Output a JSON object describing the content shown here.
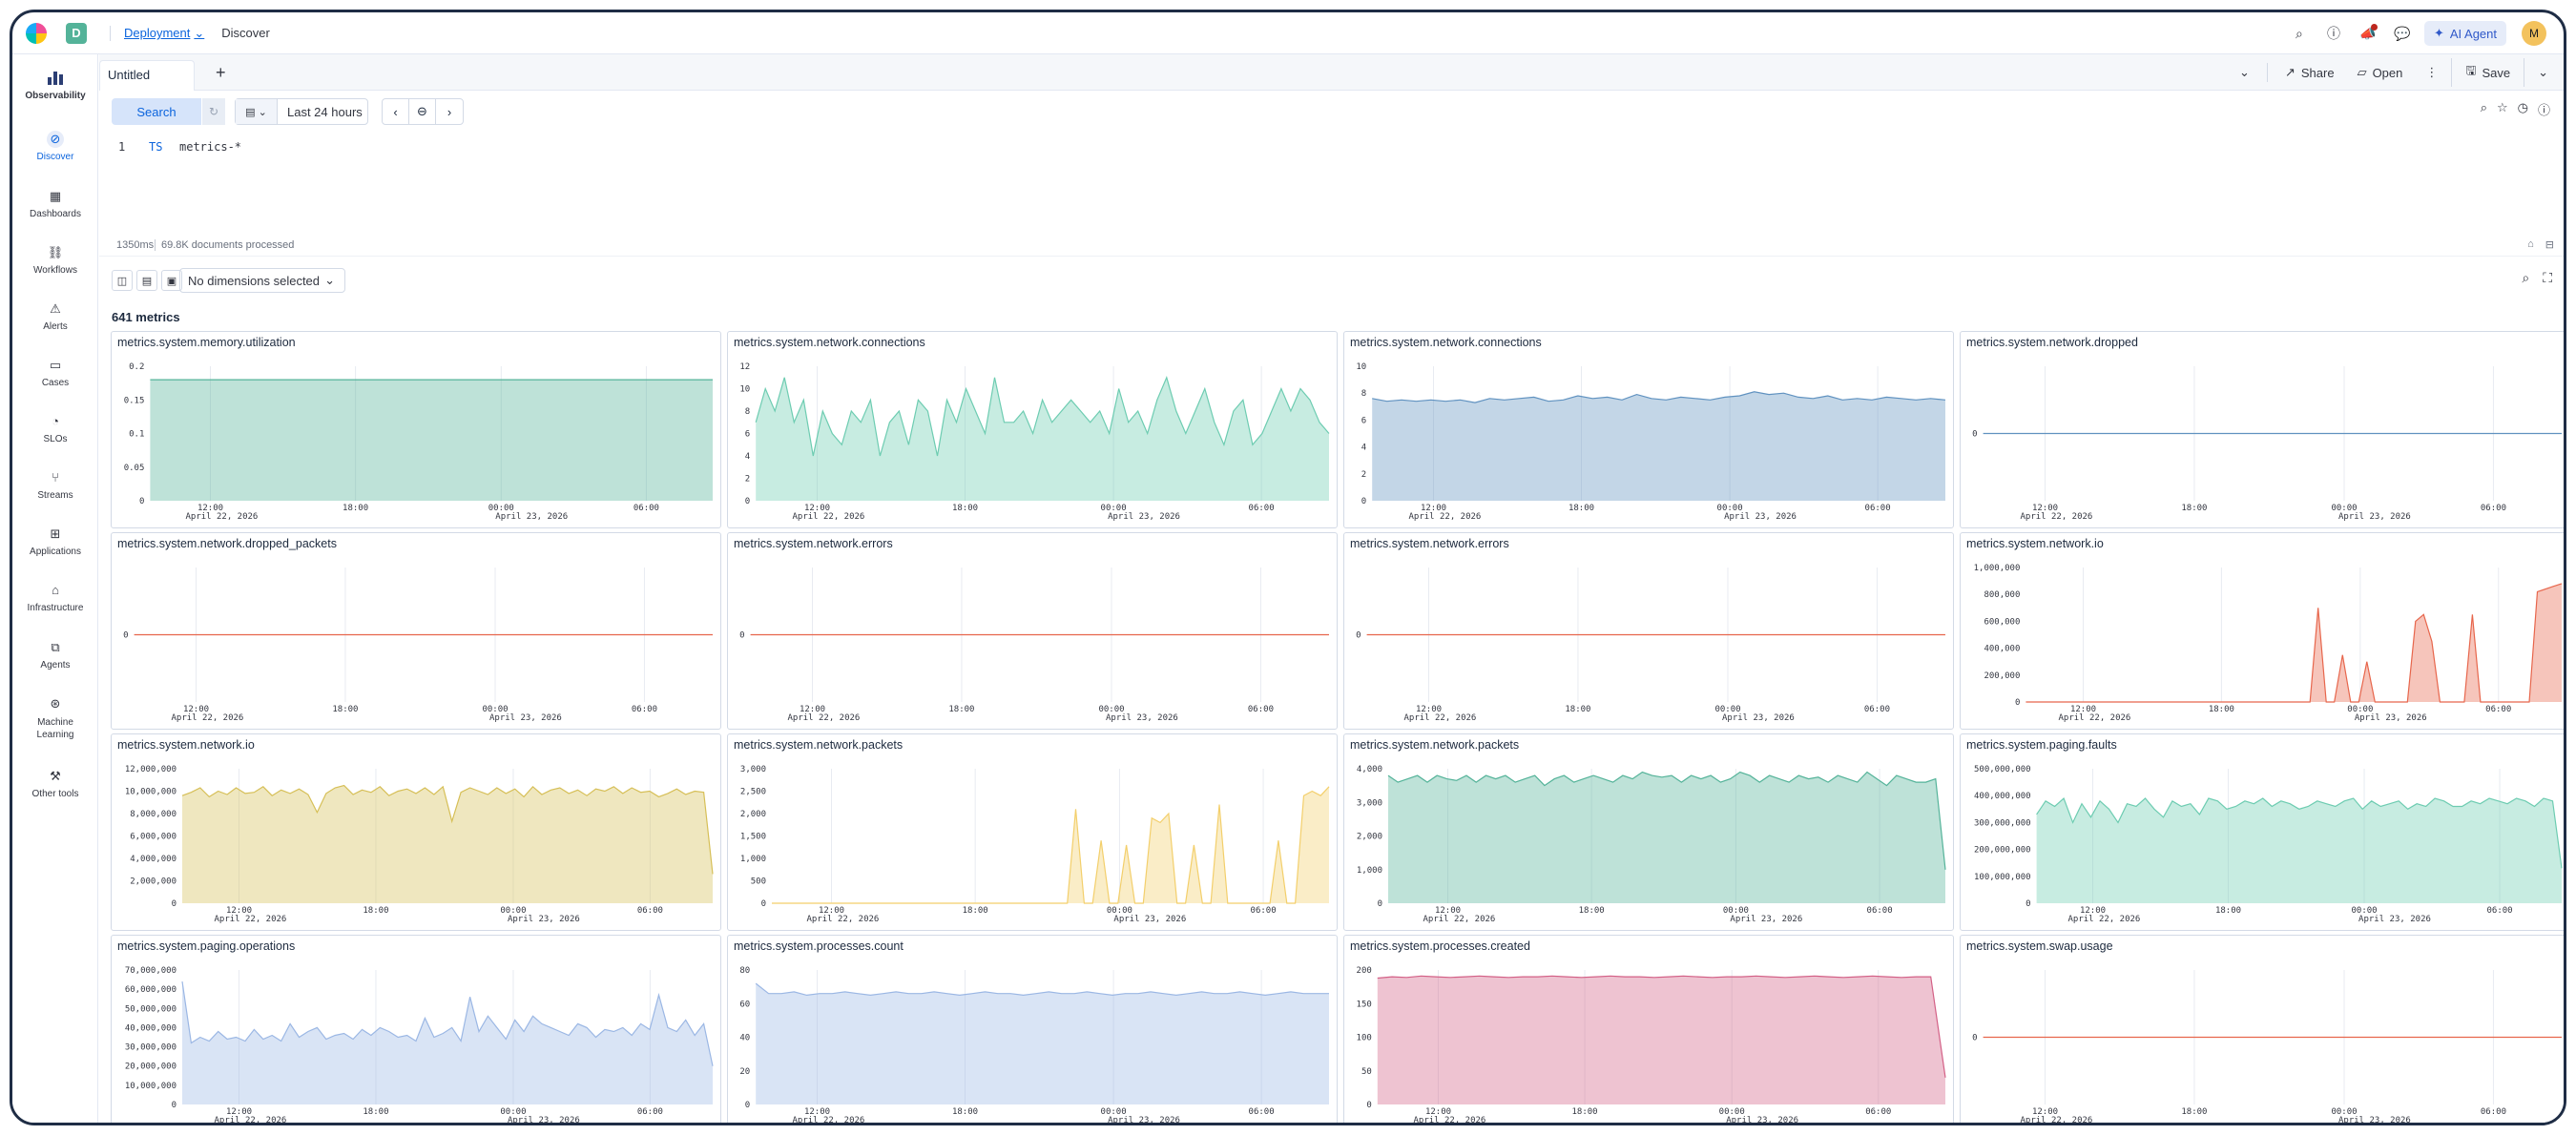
{
  "topbar": {
    "space_letter": "D",
    "breadcrumb_deployment": "Deployment",
    "breadcrumb_discover": "Discover",
    "ai_agent_label": "AI Agent",
    "avatar_initial": "M"
  },
  "sidebar": {
    "items": [
      {
        "label": "Observability"
      },
      {
        "label": "Discover"
      },
      {
        "label": "Dashboards"
      },
      {
        "label": "Workflows"
      },
      {
        "label": "Alerts"
      },
      {
        "label": "Cases"
      },
      {
        "label": "SLOs"
      },
      {
        "label": "Streams"
      },
      {
        "label": "Applications"
      },
      {
        "label": "Infrastructure"
      },
      {
        "label": "Agents"
      },
      {
        "label": "Machine Learning"
      },
      {
        "label": "Other tools"
      }
    ]
  },
  "tabs": {
    "active_tab": "Untitled",
    "share_label": "Share",
    "open_label": "Open",
    "save_label": "Save"
  },
  "query": {
    "search_label": "Search",
    "time_range": "Last 24 hours",
    "line_number": "1",
    "keyword": "TS",
    "source": "metrics-*"
  },
  "status": {
    "duration": "1350ms",
    "documents": "69.8K documents processed"
  },
  "toolbar": {
    "dimensions_label": "No dimensions selected"
  },
  "metrics_count": "641 metrics",
  "colors": {
    "teal": "#54b399",
    "lightteal": "#6dccb1",
    "blue": "#6092c0",
    "red": "#e7664c",
    "salmon": "#e7664c",
    "gold": "#d6bf57",
    "lightgold": "#f3cf6b",
    "lightblue": "#9bb7e4",
    "pink": "#d36086",
    "line_blue": "#6092c0"
  },
  "panels": [
    {
      "title": "metrics.system.memory.utilization",
      "chart_data": {
        "type": "area",
        "color": "teal",
        "yticks": [
          "0.2",
          "0.15",
          "0.1",
          "0.05",
          "0"
        ],
        "ylim": [
          0,
          0.2
        ],
        "xticks": [
          "12:00",
          "18:00",
          "00:00",
          "06:00"
        ],
        "xdates": [
          "April 22, 2026",
          "April 23, 2026"
        ],
        "values": [
          0.18,
          0.18,
          0.18,
          0.18,
          0.18,
          0.18,
          0.18,
          0.18,
          0.18,
          0.18,
          0.18,
          0.18
        ]
      }
    },
    {
      "title": "metrics.system.network.connections",
      "chart_data": {
        "type": "area",
        "color": "lightteal",
        "yticks": [
          "12",
          "10",
          "8",
          "6",
          "4",
          "2",
          "0"
        ],
        "ylim": [
          0,
          12
        ],
        "xticks": [
          "12:00",
          "18:00",
          "00:00",
          "06:00"
        ],
        "xdates": [
          "April 22, 2026",
          "April 23, 2026"
        ],
        "values": [
          7,
          10,
          8,
          11,
          7,
          9,
          4,
          8,
          6,
          5,
          8,
          7,
          9,
          4,
          7,
          8,
          5,
          9,
          8,
          4,
          9,
          7,
          10,
          8,
          6,
          11,
          7,
          7,
          8,
          6,
          9,
          7,
          8,
          9,
          8,
          7,
          8,
          6,
          10,
          7,
          8,
          6,
          9,
          11,
          8,
          6,
          8,
          10,
          7,
          5,
          8,
          9,
          5,
          6,
          8,
          10,
          8,
          10,
          9,
          7,
          6
        ]
      }
    },
    {
      "title": "metrics.system.network.connections",
      "chart_data": {
        "type": "area",
        "color": "blue",
        "yticks": [
          "10",
          "8",
          "6",
          "4",
          "2",
          "0"
        ],
        "ylim": [
          0,
          10
        ],
        "xticks": [
          "12:00",
          "18:00",
          "00:00",
          "06:00"
        ],
        "xdates": [
          "April 22, 2026",
          "April 23, 2026"
        ],
        "values": [
          7.6,
          7.4,
          7.5,
          7.4,
          7.5,
          7.4,
          7.5,
          7.3,
          7.6,
          7.5,
          7.6,
          7.7,
          7.4,
          7.5,
          7.8,
          7.6,
          7.7,
          7.5,
          7.9,
          7.6,
          7.5,
          7.7,
          7.6,
          7.5,
          7.7,
          7.8,
          8.1,
          7.9,
          8.0,
          7.7,
          7.6,
          7.8,
          7.5,
          7.6,
          7.5,
          7.7,
          7.6,
          7.5,
          7.6,
          7.5
        ]
      }
    },
    {
      "title": "metrics.system.network.dropped",
      "chart_data": {
        "type": "line",
        "color": "line_blue",
        "yticks": [
          "0"
        ],
        "ylim": [
          -1,
          1
        ],
        "xticks": [
          "12:00",
          "18:00",
          "00:00",
          "06:00"
        ],
        "xdates": [
          "April 22, 2026",
          "April 23, 2026"
        ],
        "values": [
          0,
          0
        ]
      }
    },
    {
      "title": "metrics.system.network.dropped_packets",
      "chart_data": {
        "type": "line",
        "color": "red",
        "yticks": [
          "0"
        ],
        "ylim": [
          -1,
          1
        ],
        "xticks": [
          "12:00",
          "18:00",
          "00:00",
          "06:00"
        ],
        "xdates": [
          "April 22, 2026",
          "April 23, 2026"
        ],
        "values": [
          0,
          0
        ]
      }
    },
    {
      "title": "metrics.system.network.errors",
      "chart_data": {
        "type": "line",
        "color": "salmon",
        "yticks": [
          "0"
        ],
        "ylim": [
          -1,
          1
        ],
        "xticks": [
          "12:00",
          "18:00",
          "00:00",
          "06:00"
        ],
        "xdates": [
          "April 22, 2026",
          "April 23, 2026"
        ],
        "values": [
          0,
          0
        ]
      }
    },
    {
      "title": "metrics.system.network.errors",
      "chart_data": {
        "type": "line",
        "color": "red",
        "yticks": [
          "0"
        ],
        "ylim": [
          -1,
          1
        ],
        "xticks": [
          "12:00",
          "18:00",
          "00:00",
          "06:00"
        ],
        "xdates": [
          "April 22, 2026",
          "April 23, 2026"
        ],
        "values": [
          0,
          0
        ]
      }
    },
    {
      "title": "metrics.system.network.io",
      "chart_data": {
        "type": "area",
        "color": "salmon",
        "yticks": [
          "1,000,000",
          "800,000",
          "600,000",
          "400,000",
          "200,000",
          "0"
        ],
        "ylim": [
          0,
          1000000
        ],
        "xticks": [
          "12:00",
          "18:00",
          "00:00",
          "06:00"
        ],
        "xdates": [
          "April 22, 2026",
          "April 23, 2026"
        ],
        "values": [
          0,
          0,
          0,
          0,
          0,
          0,
          0,
          0,
          0,
          0,
          0,
          0,
          0,
          0,
          0,
          0,
          0,
          0,
          0,
          0,
          0,
          0,
          0,
          0,
          0,
          0,
          0,
          0,
          0,
          0,
          0,
          0,
          0,
          0,
          0,
          0,
          700000,
          0,
          0,
          350000,
          0,
          0,
          300000,
          0,
          0,
          0,
          0,
          0,
          600000,
          650000,
          450000,
          0,
          0,
          0,
          0,
          650000,
          0,
          0,
          0,
          0,
          0,
          0,
          0,
          820000,
          840000,
          860000,
          880000
        ]
      }
    },
    {
      "title": "metrics.system.network.io",
      "chart_data": {
        "type": "area",
        "color": "gold",
        "yticks": [
          "12,000,000",
          "10,000,000",
          "8,000,000",
          "6,000,000",
          "4,000,000",
          "2,000,000",
          "0"
        ],
        "ylim": [
          0,
          12000000
        ],
        "xticks": [
          "12:00",
          "18:00",
          "00:00",
          "06:00"
        ],
        "xdates": [
          "April 22, 2026",
          "April 23, 2026"
        ],
        "values": [
          9600000,
          9900000,
          10300000,
          9500000,
          10000000,
          9700000,
          10300000,
          9800000,
          9900000,
          10400000,
          9600000,
          10100000,
          9800000,
          10200000,
          9700000,
          8100000,
          9800000,
          10300000,
          10500000,
          9700000,
          10100000,
          9900000,
          10400000,
          9600000,
          10000000,
          10200000,
          9800000,
          10300000,
          9700000,
          10400000,
          7300000,
          9900000,
          10300000,
          10000000,
          9700000,
          10300000,
          9800000,
          10200000,
          9500000,
          10400000,
          9700000,
          10100000,
          10300000,
          9800000,
          10100000,
          9600000,
          10200000,
          10000000,
          10400000,
          9800000,
          10300000,
          9900000,
          10000000,
          9500000,
          9800000,
          10200000,
          9700000,
          10000000,
          9900000,
          2600000
        ]
      }
    },
    {
      "title": "metrics.system.network.packets",
      "chart_data": {
        "type": "area",
        "color": "lightgold",
        "yticks": [
          "3,000",
          "2,500",
          "2,000",
          "1,500",
          "1,000",
          "500",
          "0"
        ],
        "ylim": [
          0,
          3000
        ],
        "xticks": [
          "12:00",
          "18:00",
          "00:00",
          "06:00"
        ],
        "xdates": [
          "April 22, 2026",
          "April 23, 2026"
        ],
        "values": [
          0,
          0,
          0,
          0,
          0,
          0,
          0,
          0,
          0,
          0,
          0,
          0,
          0,
          0,
          0,
          0,
          0,
          0,
          0,
          0,
          0,
          0,
          0,
          0,
          0,
          0,
          0,
          0,
          0,
          0,
          0,
          0,
          0,
          0,
          0,
          0,
          2100,
          0,
          0,
          1400,
          0,
          0,
          1300,
          0,
          0,
          1900,
          1800,
          2000,
          0,
          0,
          1300,
          0,
          0,
          2200,
          0,
          0,
          0,
          0,
          0,
          0,
          1400,
          0,
          0,
          2400,
          2500,
          2400,
          2600
        ]
      }
    },
    {
      "title": "metrics.system.network.packets",
      "chart_data": {
        "type": "area",
        "color": "teal",
        "yticks": [
          "4,000",
          "3,000",
          "2,000",
          "1,000",
          "0"
        ],
        "ylim": [
          0,
          4000
        ],
        "xticks": [
          "12:00",
          "18:00",
          "00:00",
          "06:00"
        ],
        "xdates": [
          "April 22, 2026",
          "April 23, 2026"
        ],
        "values": [
          3800,
          3600,
          3700,
          3800,
          3600,
          3800,
          3700,
          3650,
          3800,
          3600,
          3800,
          3700,
          3800,
          3600,
          3700,
          3800,
          3500,
          3700,
          3800,
          3600,
          3700,
          3800,
          3700,
          3600,
          3800,
          3700,
          3900,
          3800,
          3750,
          3800,
          3600,
          3800,
          3700,
          3800,
          3600,
          3700,
          3900,
          3800,
          3600,
          3800,
          3700,
          3600,
          3800,
          3700,
          3750,
          3600,
          3800,
          3700,
          3600,
          3900,
          3700,
          3500,
          3800,
          3700,
          3600,
          3600,
          3700,
          1000
        ]
      }
    },
    {
      "title": "metrics.system.paging.faults",
      "chart_data": {
        "type": "area",
        "color": "lightteal",
        "yticks": [
          "500,000,000",
          "400,000,000",
          "300,000,000",
          "200,000,000",
          "100,000,000",
          "0"
        ],
        "ylim": [
          0,
          500000000
        ],
        "xticks": [
          "12:00",
          "18:00",
          "00:00",
          "06:00"
        ],
        "xdates": [
          "April 22, 2026",
          "April 23, 2026"
        ],
        "values": [
          330000000,
          380000000,
          360000000,
          390000000,
          300000000,
          370000000,
          320000000,
          380000000,
          350000000,
          300000000,
          370000000,
          360000000,
          390000000,
          350000000,
          320000000,
          380000000,
          360000000,
          370000000,
          330000000,
          390000000,
          380000000,
          350000000,
          360000000,
          380000000,
          370000000,
          390000000,
          360000000,
          380000000,
          370000000,
          350000000,
          360000000,
          380000000,
          370000000,
          360000000,
          380000000,
          390000000,
          350000000,
          380000000,
          360000000,
          370000000,
          380000000,
          350000000,
          370000000,
          360000000,
          390000000,
          380000000,
          360000000,
          360000000,
          380000000,
          370000000,
          390000000,
          380000000,
          370000000,
          390000000,
          380000000,
          360000000,
          390000000,
          380000000,
          130000000
        ]
      }
    },
    {
      "title": "metrics.system.paging.operations",
      "chart_data": {
        "type": "area",
        "color": "lightblue",
        "yticks": [
          "70,000,000",
          "60,000,000",
          "50,000,000",
          "40,000,000",
          "30,000,000",
          "20,000,000",
          "10,000,000",
          "0"
        ],
        "ylim": [
          0,
          70000000
        ],
        "xticks": [
          "12:00",
          "18:00",
          "00:00",
          "06:00"
        ],
        "xdates": [
          "April 22, 2026",
          "April 23, 2026"
        ],
        "values": [
          64000000,
          32000000,
          35000000,
          33000000,
          38000000,
          34000000,
          35000000,
          33000000,
          39000000,
          34000000,
          36000000,
          33000000,
          42000000,
          35000000,
          38000000,
          40000000,
          34000000,
          36000000,
          37000000,
          34000000,
          39000000,
          36000000,
          40000000,
          38000000,
          35000000,
          36000000,
          33000000,
          45000000,
          35000000,
          37000000,
          40000000,
          33000000,
          56000000,
          38000000,
          46000000,
          40000000,
          34000000,
          44000000,
          38000000,
          46000000,
          42000000,
          40000000,
          38000000,
          36000000,
          42000000,
          40000000,
          35000000,
          39000000,
          38000000,
          40000000,
          36000000,
          42000000,
          39000000,
          57000000,
          40000000,
          38000000,
          44000000,
          36000000,
          42000000,
          20000000
        ]
      }
    },
    {
      "title": "metrics.system.processes.count",
      "chart_data": {
        "type": "area",
        "color": "lightblue",
        "yticks": [
          "80",
          "60",
          "40",
          "20",
          "0"
        ],
        "ylim": [
          0,
          80
        ],
        "xticks": [
          "12:00",
          "18:00",
          "00:00",
          "06:00"
        ],
        "xdates": [
          "April 22, 2026",
          "April 23, 2026"
        ],
        "values": [
          72,
          66,
          66,
          67,
          65,
          66,
          66,
          67,
          66,
          65,
          66,
          67,
          66,
          66,
          67,
          66,
          65,
          66,
          67,
          66,
          66,
          65,
          66,
          67,
          66,
          66,
          67,
          66,
          65,
          66,
          66,
          67,
          66,
          65,
          66,
          67,
          66,
          66,
          67,
          66,
          65,
          66,
          67,
          66,
          66,
          66
        ]
      }
    },
    {
      "title": "metrics.system.processes.created",
      "chart_data": {
        "type": "area",
        "color": "pink",
        "yticks": [
          "200",
          "150",
          "100",
          "50",
          "0"
        ],
        "ylim": [
          0,
          200
        ],
        "xticks": [
          "12:00",
          "18:00",
          "00:00",
          "06:00"
        ],
        "xdates": [
          "April 22, 2026",
          "April 23, 2026"
        ],
        "values": [
          188,
          190,
          189,
          191,
          190,
          189,
          190,
          191,
          190,
          189,
          190,
          190,
          191,
          190,
          189,
          190,
          191,
          190,
          190,
          189,
          190,
          191,
          190,
          189,
          190,
          190,
          191,
          190,
          189,
          190,
          191,
          190,
          189,
          190,
          191,
          190,
          189,
          190,
          190,
          40
        ]
      }
    },
    {
      "title": "metrics.system.swap.usage",
      "chart_data": {
        "type": "line",
        "color": "salmon",
        "yticks": [
          "0"
        ],
        "ylim": [
          -1,
          1
        ],
        "xticks": [
          "12:00",
          "18:00",
          "00:00",
          "06:00"
        ],
        "xdates": [
          "April 22, 2026",
          "April 23, 2026"
        ],
        "values": [
          0,
          0
        ]
      }
    }
  ]
}
